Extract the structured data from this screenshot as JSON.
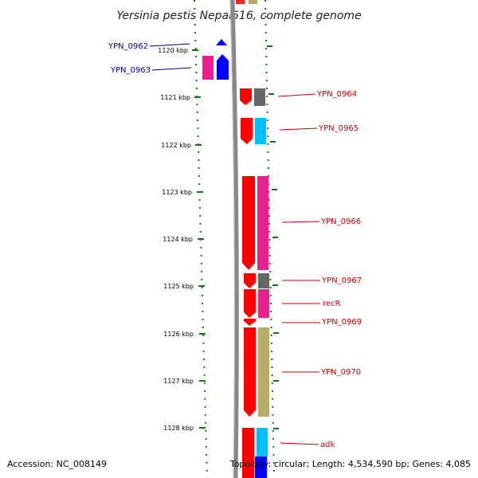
{
  "title": "Yersinia pestis Nepal516, complete genome",
  "footer": {
    "accession": "Accession: NC_008149",
    "topology": "Topology: circular; Length: 4,534,590 bp; Genes: 4,085"
  },
  "ruler": {
    "ticks": [
      "1120 kbp",
      "1121 kbp",
      "1122 kbp",
      "1123 kbp",
      "1124 kbp",
      "1125 kbp",
      "1126 kbp",
      "1127 kbp",
      "1128 kbp"
    ]
  },
  "gene_labels_left": [
    "YPN_0962",
    "YPN_0963"
  ],
  "gene_labels_right": [
    "YPN_0964",
    "YPN_0965",
    "YPN_0966",
    "YPN_0967",
    "recR",
    "YPN_0969",
    "YPN_0970",
    "adk"
  ],
  "colors": {
    "forward_strand": "#ff0000",
    "reverse_strand": "#0000ff",
    "cog_pink": "#e8228c",
    "cog_gray": "#666666",
    "cog_cyan": "#00c0ff",
    "cog_olive": "#b8ac6a",
    "ruler_green": "#117711",
    "label_left": "#000099",
    "label_right": "#cc0000",
    "backbone": "#888888"
  }
}
